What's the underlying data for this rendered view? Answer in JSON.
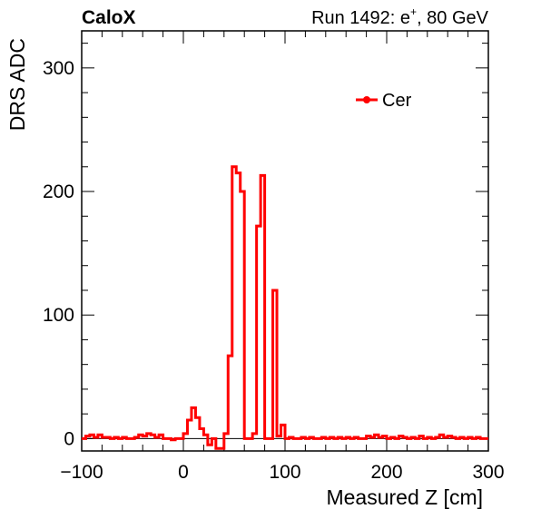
{
  "header": {
    "experiment": "CaloX",
    "run_label": "Run 1492: e",
    "run_sup": "+",
    "run_suffix": ", 80 GeV"
  },
  "chart_data": {
    "type": "line",
    "style": "step-histogram",
    "xlabel": "Measured Z [cm]",
    "ylabel": "DRS ADC",
    "xlim": [
      -100,
      300
    ],
    "ylim": [
      -10,
      330
    ],
    "x_ticks": [
      -100,
      0,
      100,
      200,
      300
    ],
    "x_tick_labels": [
      "−100",
      "0",
      "100",
      "200",
      "300"
    ],
    "y_ticks": [
      0,
      100,
      200,
      300
    ],
    "y_tick_labels": [
      "0",
      "100",
      "200",
      "300"
    ],
    "grid": false,
    "legend": {
      "position": "top-right",
      "entries": [
        {
          "label": "Cer",
          "color": "#ff0000",
          "marker": "circle"
        }
      ]
    },
    "series": [
      {
        "name": "Cer",
        "color": "#ff0000",
        "bin_width": 4,
        "x": [
          -100,
          -96,
          -92,
          -88,
          -84,
          -80,
          -76,
          -72,
          -68,
          -64,
          -60,
          -56,
          -52,
          -48,
          -44,
          -40,
          -36,
          -32,
          -28,
          -24,
          -20,
          -16,
          -12,
          -8,
          -4,
          0,
          4,
          8,
          12,
          16,
          20,
          24,
          28,
          32,
          36,
          40,
          44,
          48,
          52,
          56,
          60,
          64,
          68,
          72,
          76,
          80,
          84,
          88,
          92,
          96,
          100,
          104,
          108,
          112,
          116,
          120,
          124,
          128,
          132,
          136,
          140,
          144,
          148,
          152,
          156,
          160,
          164,
          168,
          172,
          176,
          180,
          184,
          188,
          192,
          196,
          200,
          204,
          208,
          212,
          216,
          220,
          224,
          228,
          232,
          236,
          240,
          244,
          248,
          252,
          256,
          260,
          264,
          268,
          272,
          276,
          280,
          284,
          288,
          292,
          296
        ],
        "values": [
          0,
          2,
          3,
          1,
          3,
          1,
          1,
          0,
          1,
          0,
          1,
          0,
          0,
          1,
          3,
          2,
          4,
          3,
          1,
          3,
          0,
          0,
          -1,
          0,
          0,
          4,
          15,
          25,
          17,
          8,
          3,
          -5,
          0,
          -8,
          -8,
          4,
          67,
          220,
          215,
          200,
          0,
          0,
          4,
          172,
          213,
          0,
          0,
          120,
          2,
          11,
          0,
          1,
          0,
          0,
          1,
          0,
          1,
          0,
          0,
          1,
          0,
          1,
          0,
          1,
          0,
          1,
          0,
          1,
          0,
          0,
          2,
          1,
          3,
          1,
          2,
          0,
          1,
          0,
          2,
          1,
          0,
          1,
          0,
          2,
          0,
          1,
          0,
          1,
          3,
          1,
          2,
          1,
          0,
          1,
          0,
          1,
          0,
          1,
          0,
          0
        ]
      }
    ]
  }
}
